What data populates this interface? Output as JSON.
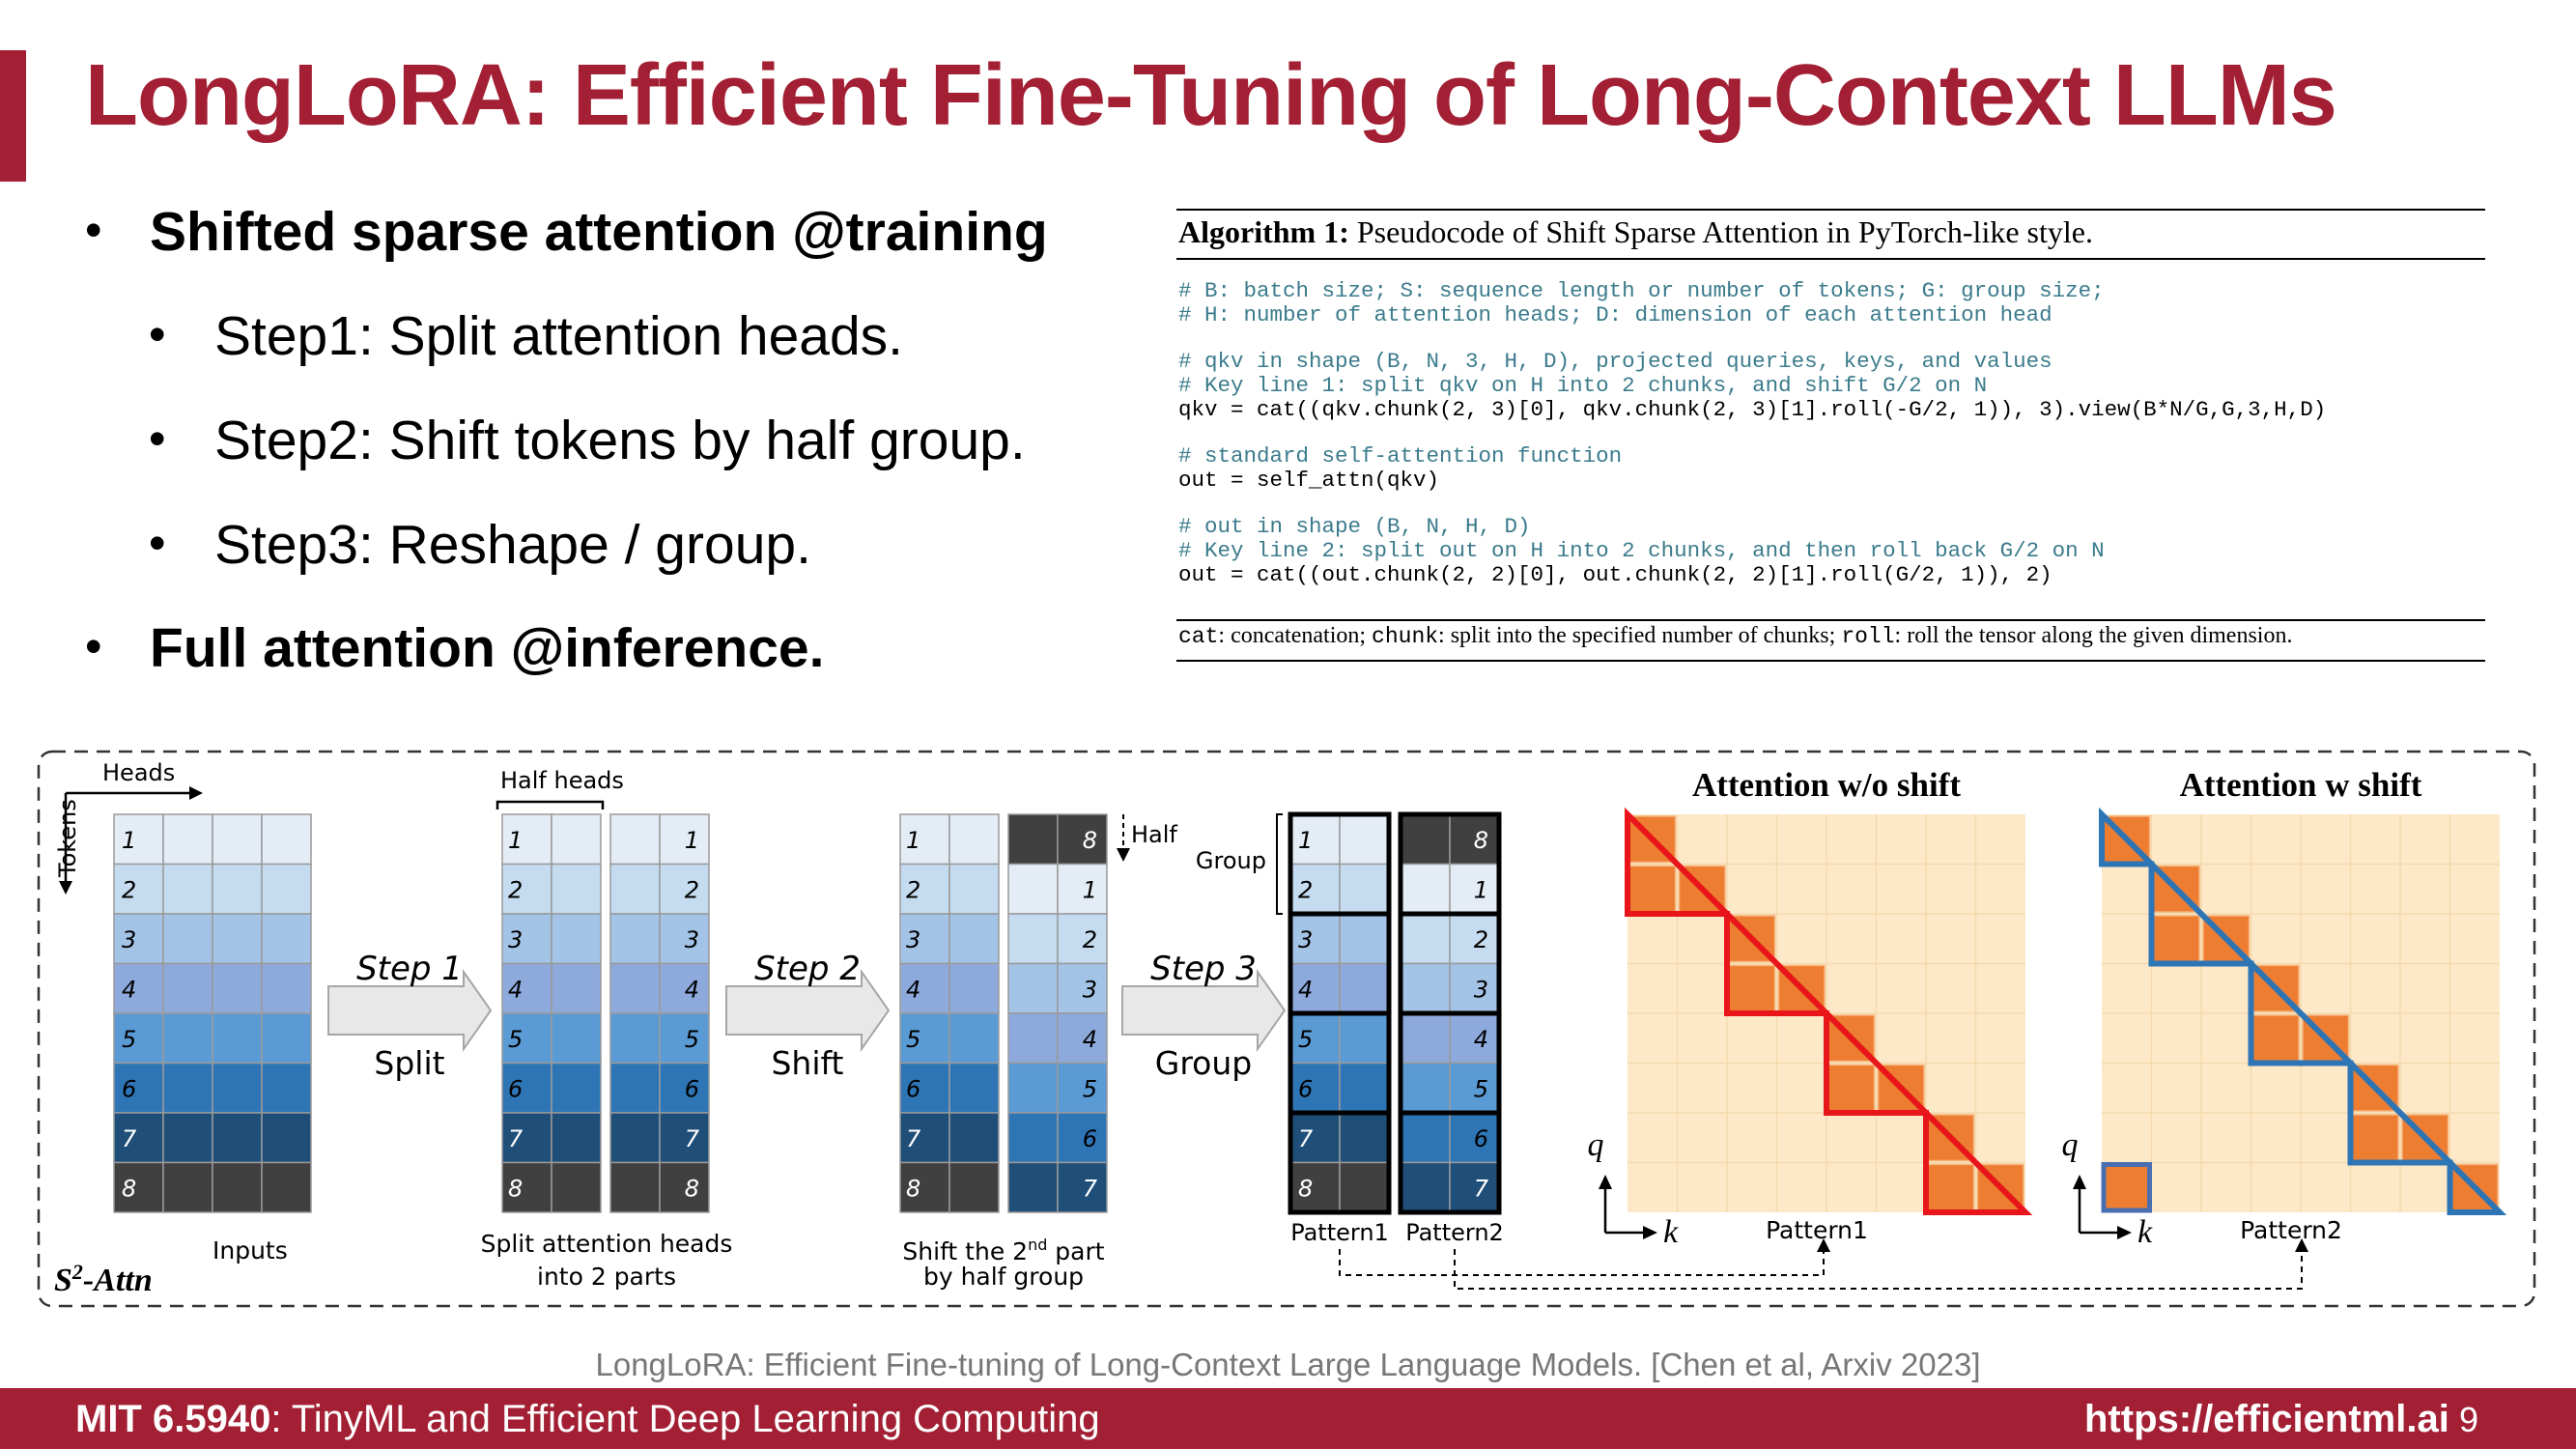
{
  "slide": {
    "title": "LongLoRA: Efficient Fine-Tuning of Long-Context LLMs",
    "bullets": [
      {
        "text": "Shifted sparse attention @training",
        "bold": true,
        "level": 1
      },
      {
        "text": "Step1: Split attention heads.",
        "bold": false,
        "level": 2
      },
      {
        "text": "Step2: Shift tokens by half group.",
        "bold": false,
        "level": 2
      },
      {
        "text": "Step3: Reshape / group.",
        "bold": false,
        "level": 2
      },
      {
        "text": "Full attention @inference.",
        "bold": true,
        "level": 1
      }
    ],
    "citation": "LongLoRA: Efficient Fine-tuning of Long-Context Large Language Models. [Chen et al, Arxiv 2023]",
    "footer": {
      "course": "MIT 6.5940",
      "course_rest": ": TinyML and Efficient Deep Learning Computing",
      "url": "https://efficientml.ai",
      "page": "9"
    }
  },
  "algorithm": {
    "label": "Algorithm 1:",
    "caption": "Pseudocode of Shift Sparse Attention in PyTorch-like style.",
    "code": [
      {
        "text": "# B: batch size; S: sequence length or number of tokens; G: group size;",
        "kind": "comment"
      },
      {
        "text": "# H: number of attention heads; D: dimension of each attention head",
        "kind": "comment"
      },
      {
        "text": "",
        "kind": "blank"
      },
      {
        "text": "# qkv in shape (B, N, 3, H, D), projected queries, keys, and values",
        "kind": "comment"
      },
      {
        "text": "# Key line 1: split qkv on H into 2 chunks, and shift G/2 on N",
        "kind": "comment"
      },
      {
        "text": "qkv = cat((qkv.chunk(2, 3)[0], qkv.chunk(2, 3)[1].roll(-G/2, 1)), 3).view(B*N/G,G,3,H,D)",
        "kind": "code"
      },
      {
        "text": "",
        "kind": "blank"
      },
      {
        "text": "# standard self-attention function",
        "kind": "comment"
      },
      {
        "text": "out = self_attn(qkv)",
        "kind": "code"
      },
      {
        "text": "",
        "kind": "blank"
      },
      {
        "text": "# out in shape (B, N, H, D)",
        "kind": "comment"
      },
      {
        "text": "# Key line 2: split out on H into 2 chunks, and then roll back G/2 on N",
        "kind": "comment"
      },
      {
        "text": "out = cat((out.chunk(2, 2)[0], out.chunk(2, 2)[1].roll(G/2, 1)), 2)",
        "kind": "code"
      }
    ],
    "footnote": [
      {
        "text": "cat",
        "mono": true
      },
      {
        "text": ": concatenation; ",
        "mono": false
      },
      {
        "text": "chunk",
        "mono": true
      },
      {
        "text": ": split into the specified number of chunks; ",
        "mono": false
      },
      {
        "text": "roll",
        "mono": true
      },
      {
        "text": ": roll the tensor along the given dimension.",
        "mono": false
      }
    ]
  },
  "figure": {
    "heads_label": "Heads",
    "tokens_label": "Tokens",
    "half_heads_label": "Half heads",
    "half_label": "Half",
    "group_label": "Group",
    "tokens": [
      "1",
      "2",
      "3",
      "4",
      "5",
      "6",
      "7",
      "8"
    ],
    "shifted_tokens": [
      "8",
      "1",
      "2",
      "3",
      "4",
      "5",
      "6",
      "7"
    ],
    "token_colors": [
      "#e4ecf6",
      "#c5dcf0",
      "#a3c4e6",
      "#8eaadd",
      "#5b9bd5",
      "#2e75b6",
      "#1f4e79",
      "#404040"
    ],
    "steps": [
      {
        "name": "Step 1",
        "action": "Split"
      },
      {
        "name": "Step 2",
        "action": "Shift"
      },
      {
        "name": "Step 3",
        "action": "Group"
      }
    ],
    "captions": {
      "inputs": "Inputs",
      "split_1": "Split attention heads",
      "split_2": "into 2 parts",
      "shift_1_pre": "Shift the 2",
      "shift_1_sup": "nd",
      "shift_1_post": " part",
      "shift_2": "by half group",
      "pattern1": "Pattern1",
      "pattern2": "Pattern2"
    },
    "s2_label": "S",
    "s2_sup": "2",
    "s2_rest": "-Attn",
    "attn_no_shift": {
      "title": "Attention w/o shift",
      "pattern": "Pattern1",
      "q": "q",
      "k": "k",
      "line_color": "#e8161b"
    },
    "attn_shift": {
      "title": "Attention w shift",
      "pattern": "Pattern2",
      "q": "q",
      "k": "k",
      "line_color": "#2e75b6"
    },
    "colors": {
      "grid_bg": "#fde9c8",
      "grid_line": "#f5d9ad",
      "attn_cell": "#ed7d31",
      "arrow_fill": "#e8e8e8",
      "arrow_stroke": "#a6a6a6"
    }
  }
}
